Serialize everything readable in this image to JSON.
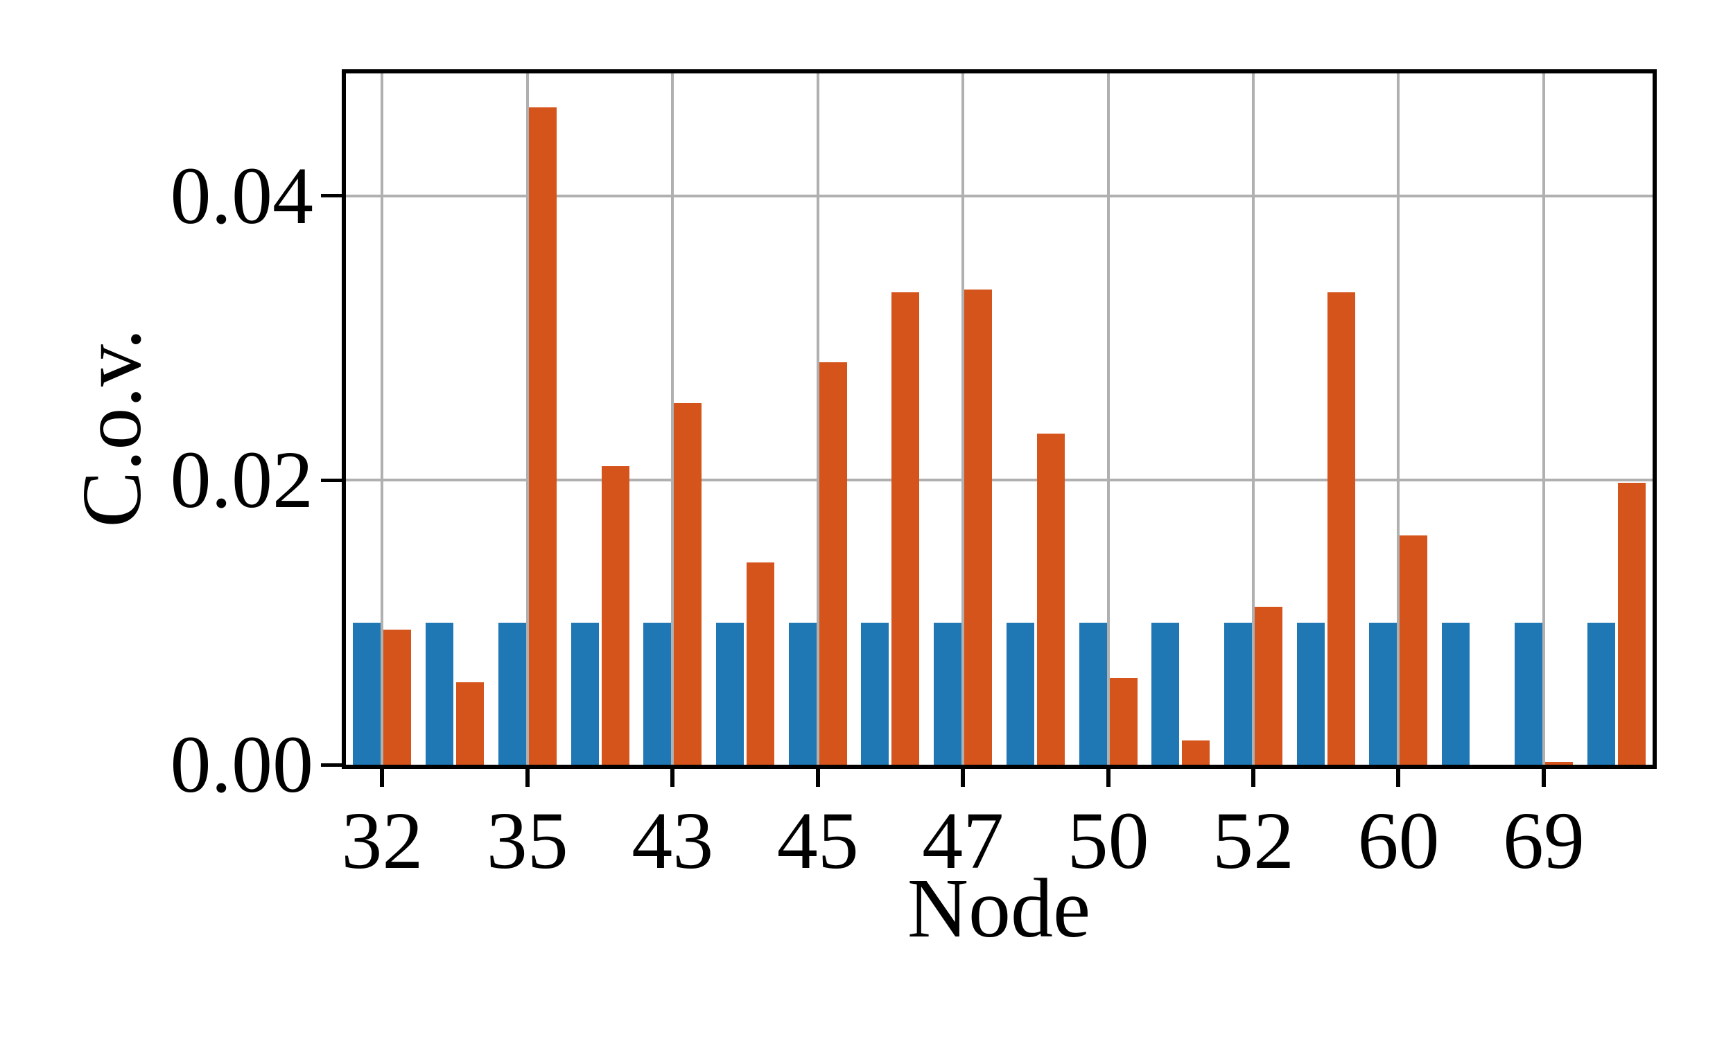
{
  "chart_data": {
    "type": "bar",
    "title": "",
    "xlabel": "Node",
    "ylabel": "C.o.v.",
    "categories": [
      "32",
      "",
      "35",
      "",
      "43",
      "",
      "45",
      "",
      "47",
      "",
      "50",
      "",
      "52",
      "",
      "60",
      "",
      "69",
      ""
    ],
    "series": [
      {
        "name": "blue",
        "color": "#1f77b4",
        "values": [
          0.01,
          0.01,
          0.01,
          0.01,
          0.01,
          0.01,
          0.01,
          0.01,
          0.01,
          0.01,
          0.01,
          0.01,
          0.01,
          0.01,
          0.01,
          0.01,
          0.01,
          0.01
        ]
      },
      {
        "name": "orange",
        "color": "#d5541c",
        "values": [
          0.0095,
          0.0058,
          0.0462,
          0.021,
          0.0254,
          0.0142,
          0.0283,
          0.0332,
          0.0334,
          0.0233,
          0.0061,
          0.0017,
          0.0111,
          0.0332,
          0.0161,
          0,
          0.0002,
          0.0198
        ]
      }
    ],
    "ylim": [
      0,
      0.0486
    ],
    "yticks": [
      {
        "value": 0.0,
        "label": "0.00"
      },
      {
        "value": 0.02,
        "label": "0.02"
      },
      {
        "value": 0.04,
        "label": "0.04"
      }
    ],
    "grid": true,
    "legend_position": "none",
    "grid_color": "#b0b0b0",
    "spine_color": "#000000"
  }
}
